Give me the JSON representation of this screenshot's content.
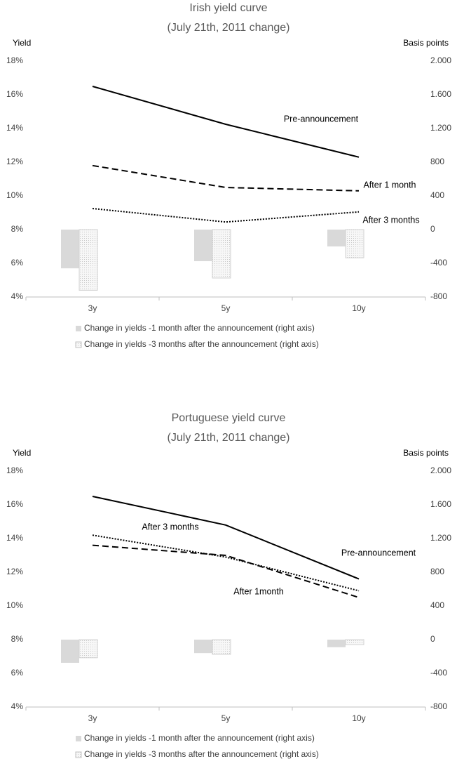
{
  "chart_data": [
    {
      "type": "bar-line",
      "title": "Irish yield curve",
      "subtitle": "(July 21th, 2011 change)",
      "y_label": "Yield",
      "y2_label": "Basis points",
      "categories": [
        "3y",
        "5y",
        "10y"
      ],
      "ylim": [
        4,
        18
      ],
      "yticks": [
        {
          "value": 4,
          "label": "4%"
        },
        {
          "value": 6,
          "label": "6%"
        },
        {
          "value": 8,
          "label": "8%"
        },
        {
          "value": 10,
          "label": "10%"
        },
        {
          "value": 12,
          "label": "12%"
        },
        {
          "value": 14,
          "label": "14%"
        },
        {
          "value": 16,
          "label": "16%"
        },
        {
          "value": 18,
          "label": "18%"
        }
      ],
      "y2lim": [
        -800,
        2000
      ],
      "y2ticks": [
        -800,
        -400,
        0,
        400,
        800,
        {
          "value": 1200,
          "label": "1.200"
        },
        {
          "value": 1600,
          "label": "1.600"
        },
        {
          "value": 2000,
          "label": "2.000"
        }
      ],
      "series": [
        {
          "name": "Pre-announcement",
          "kind": "line",
          "dash": "solid",
          "color": "#000000",
          "values": [
            16.5,
            14.25,
            12.3
          ]
        },
        {
          "name": "After 1 month",
          "kind": "line",
          "dash": "dashed",
          "color": "#000000",
          "values": [
            11.8,
            10.5,
            10.3
          ]
        },
        {
          "name": "After 3 months",
          "kind": "line",
          "dash": "dotted",
          "color": "#000000",
          "values": [
            9.25,
            8.45,
            9.05
          ]
        },
        {
          "name": "Change in yields -1 month after the announcement (right axis)",
          "kind": "bar",
          "axis": "y2",
          "color": "#d9d9d9",
          "values": [
            -460,
            -375,
            -200
          ]
        },
        {
          "name": "Change in yields -3 months after the announcement (right axis)",
          "kind": "bar",
          "axis": "y2",
          "color": "#f2f2f2",
          "pattern": "dotted",
          "values": [
            -720,
            -575,
            -335
          ]
        }
      ]
    },
    {
      "type": "bar-line",
      "title": "Portuguese yield curve",
      "subtitle": "(July 21th, 2011 change)",
      "y_label": "Yield",
      "y2_label": "Basis points",
      "categories": [
        "3y",
        "5y",
        "10y"
      ],
      "ylim": [
        4,
        18
      ],
      "yticks": [
        {
          "value": 4,
          "label": "4%"
        },
        {
          "value": 6,
          "label": "6%"
        },
        {
          "value": 8,
          "label": "8%"
        },
        {
          "value": 10,
          "label": "10%"
        },
        {
          "value": 12,
          "label": "12%"
        },
        {
          "value": 14,
          "label": "14%"
        },
        {
          "value": 16,
          "label": "16%"
        },
        {
          "value": 18,
          "label": "18%"
        }
      ],
      "y2lim": [
        -800,
        2000
      ],
      "y2ticks": [
        -800,
        -400,
        0,
        400,
        800,
        {
          "value": 1200,
          "label": "1.200"
        },
        {
          "value": 1600,
          "label": "1.600"
        },
        {
          "value": 2000,
          "label": "2.000"
        }
      ],
      "series": [
        {
          "name": "Pre-announcement",
          "kind": "line",
          "dash": "solid",
          "color": "#000000",
          "values": [
            16.5,
            14.8,
            11.6
          ]
        },
        {
          "name": "After 1month",
          "kind": "line",
          "dash": "dashed",
          "color": "#000000",
          "values": [
            13.6,
            13.0,
            10.5
          ]
        },
        {
          "name": "After 3 months",
          "kind": "line",
          "dash": "dotted",
          "color": "#000000",
          "values": [
            14.2,
            12.9,
            10.9
          ]
        },
        {
          "name": "Change in yields -1 month after the announcement (right axis)",
          "kind": "bar",
          "axis": "y2",
          "color": "#d9d9d9",
          "values": [
            -275,
            -160,
            -90
          ]
        },
        {
          "name": "Change in yields -3 months after the announcement (right axis)",
          "kind": "bar",
          "axis": "y2",
          "color": "#f2f2f2",
          "pattern": "dotted",
          "values": [
            -215,
            -175,
            -60
          ]
        }
      ]
    }
  ]
}
